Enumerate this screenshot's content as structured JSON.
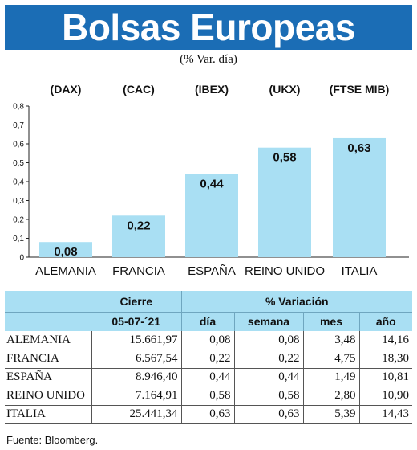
{
  "header": {
    "title": "Bolsas Europeas",
    "subtitle": "(% Var. día)"
  },
  "chart_data": {
    "type": "bar",
    "indices": [
      "(DAX)",
      "(CAC)",
      "(IBEX)",
      "(UKX)",
      "(FTSE MIB)"
    ],
    "categories": [
      "ALEMANIA",
      "FRANCIA",
      "ESPAÑA",
      "REINO UNIDO",
      "ITALIA"
    ],
    "values": [
      0.08,
      0.22,
      0.44,
      0.58,
      0.63
    ],
    "value_labels": [
      "0,08",
      "0,22",
      "0,44",
      "0,58",
      "0,63"
    ],
    "yticks": [
      "0",
      "0,1",
      "0,2",
      "0,3",
      "0,4",
      "0,5",
      "0,6",
      "0,7",
      "0,8"
    ],
    "ylim": [
      0,
      0.8
    ],
    "bar_color": "#a9dff3",
    "grid": false
  },
  "table": {
    "header_cierre": "Cierre",
    "header_variacion": "% Variación",
    "date": "05-07-´21",
    "cols": [
      "día",
      "semana",
      "mes",
      "año"
    ],
    "rows": [
      {
        "country": "ALEMANIA",
        "cierre": "15.661,97",
        "dia": "0,08",
        "semana": "0,08",
        "mes": "3,48",
        "ano": "14,16"
      },
      {
        "country": "FRANCIA",
        "cierre": "6.567,54",
        "dia": "0,22",
        "semana": "0,22",
        "mes": "4,75",
        "ano": "18,30"
      },
      {
        "country": "ESPAÑA",
        "cierre": "8.946,40",
        "dia": "0,44",
        "semana": "0,44",
        "mes": "1,49",
        "ano": "10,81"
      },
      {
        "country": "REINO UNIDO",
        "cierre": "7.164,91",
        "dia": "0,58",
        "semana": "0,58",
        "mes": "2,80",
        "ano": "10,90"
      },
      {
        "country": "ITALIA",
        "cierre": "25.441,34",
        "dia": "0,63",
        "semana": "0,63",
        "mes": "5,39",
        "ano": "14,43"
      }
    ]
  },
  "source": "Fuente: Bloomberg."
}
